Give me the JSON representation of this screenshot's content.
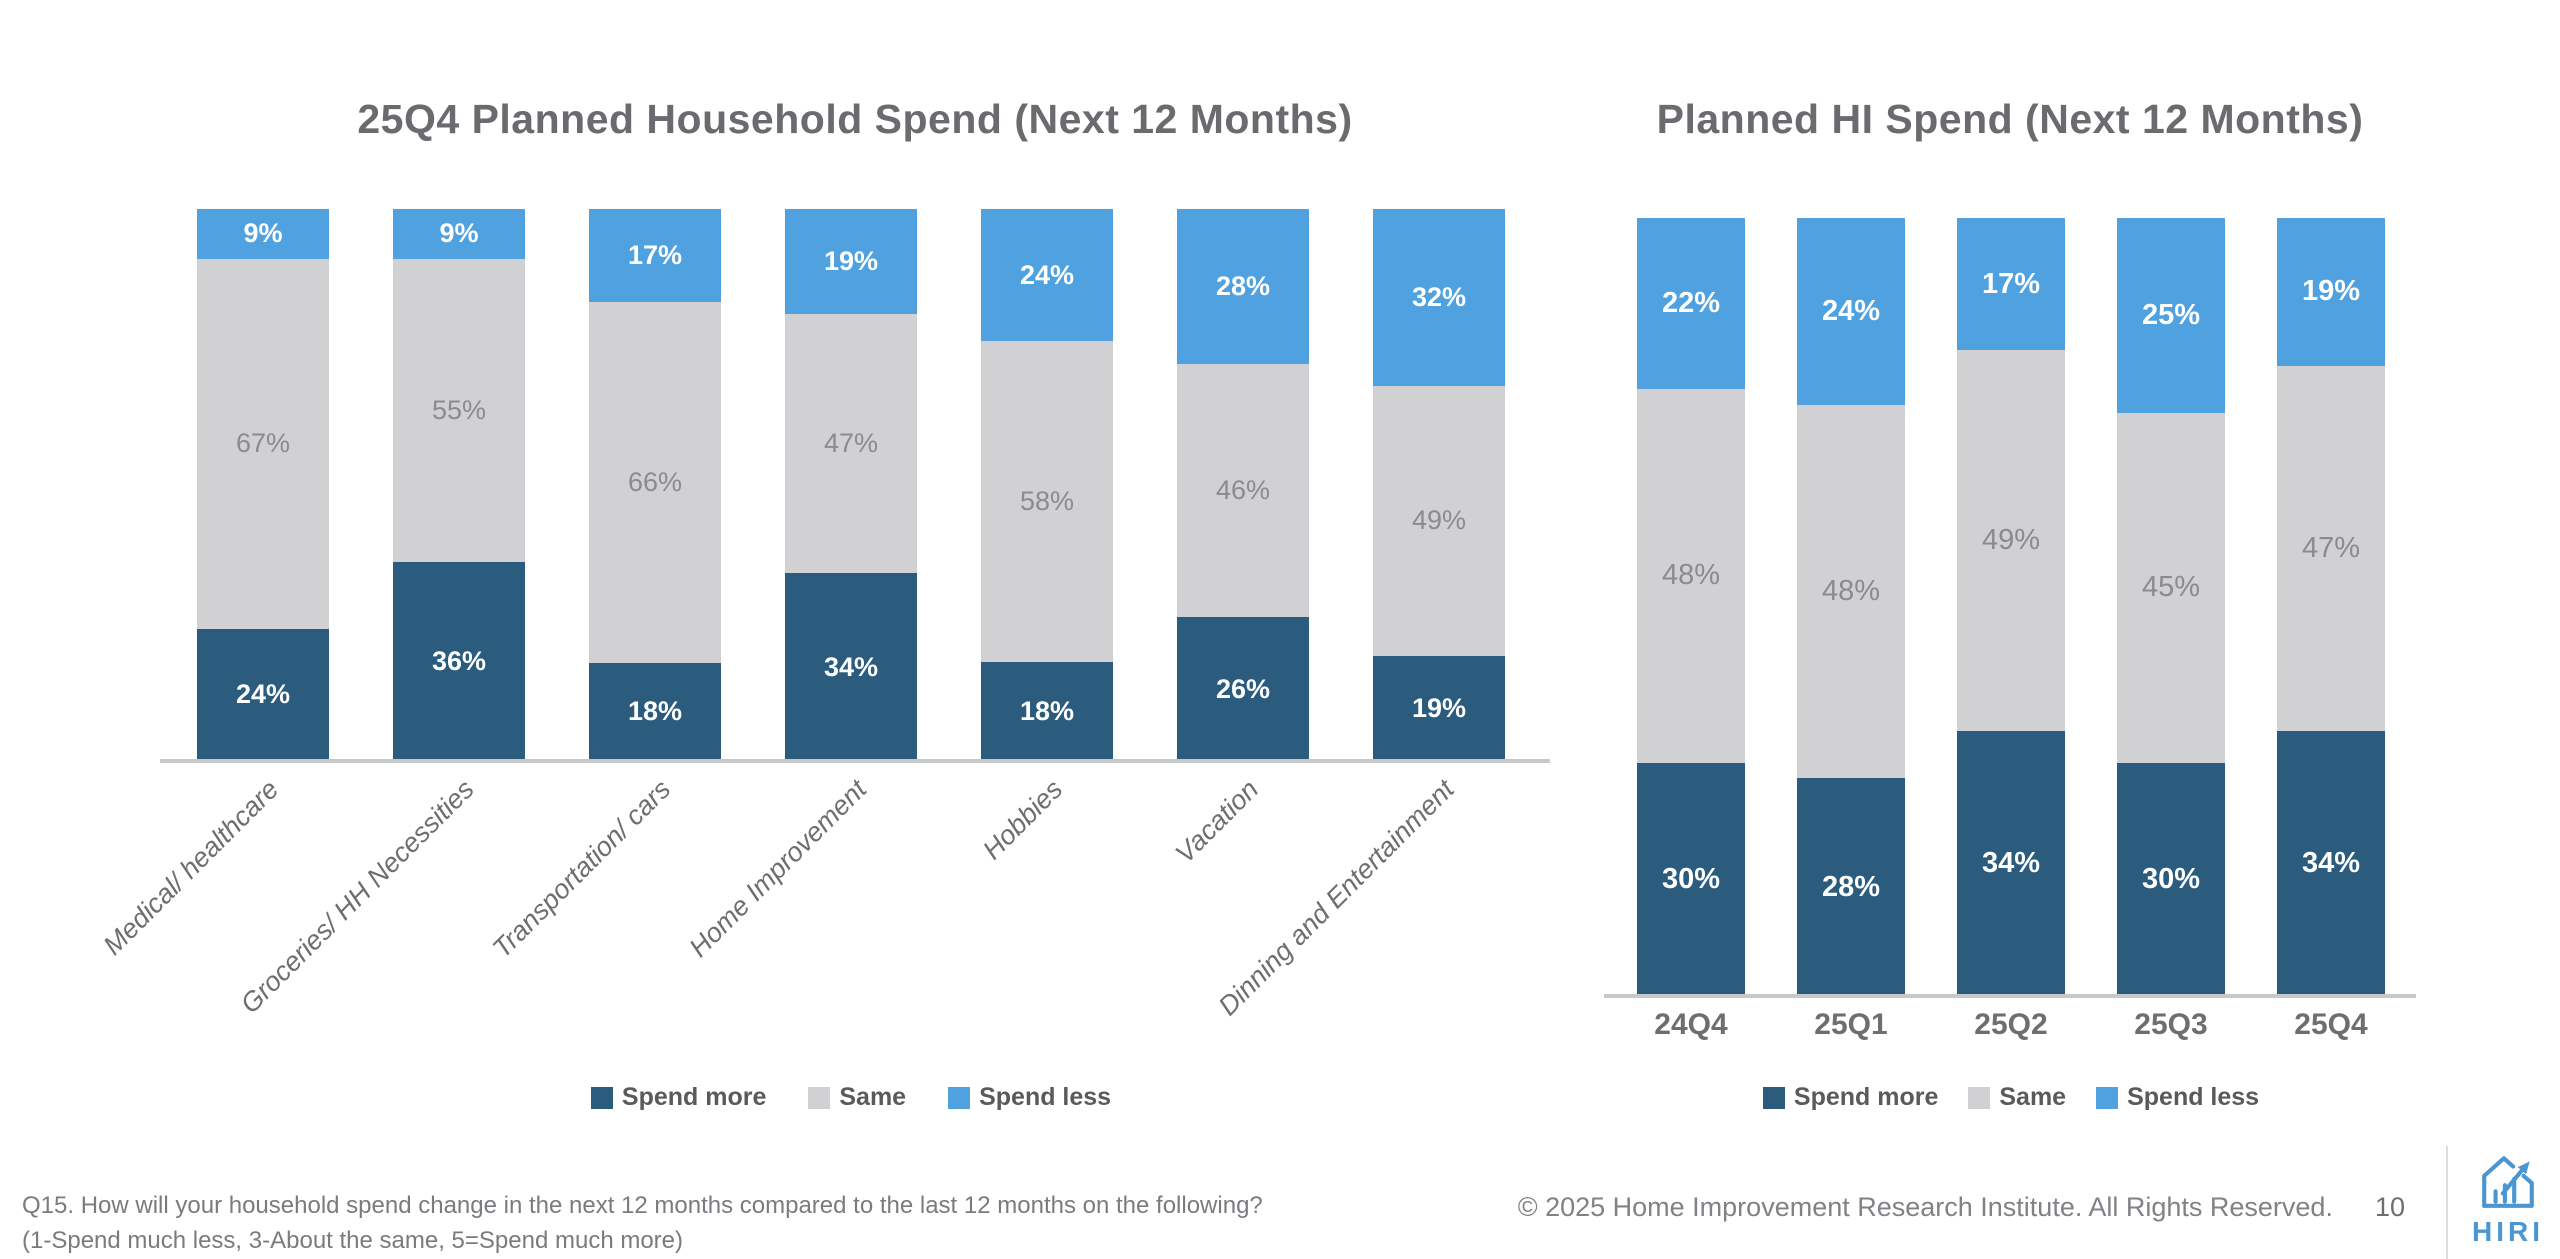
{
  "slide": {
    "footnote_line1": "Q15. How will your household spend change in the next 12 months compared to the last 12 months on the following?",
    "footnote_line2": "(1-Spend much less, 3-About the same, 5=Spend much more)",
    "copyright": "© 2025 Home Improvement Research Institute. All Rights Reserved.",
    "page_number": "10",
    "logo_text": "HIRI"
  },
  "colors": {
    "spend_more": "#2B5C7E",
    "same": "#D1D1D3",
    "spend_less": "#4FA2DF",
    "title_text": "#6A6B6E",
    "gray_segment_label": "#8A8B8E",
    "axis_line": "#C7C8CA",
    "logo_blue": "#4A96D2"
  },
  "series_styles": [
    {
      "name": "Spend more",
      "fill": "#2B5C7E",
      "label": "#FFFFFF"
    },
    {
      "name": "Same",
      "fill": "#D1D1D3",
      "label": "#8A8B8E"
    },
    {
      "name": "Spend less",
      "fill": "#4FA2DF",
      "label": "#FFFFFF"
    }
  ],
  "chart_data": [
    {
      "type": "bar",
      "stacked": true,
      "orientation": "vertical",
      "title": "25Q4 Planned Household Spend (Next 12 Months)",
      "categories": [
        "Medical/ healthcare",
        "Groceries/ HH Necessities",
        "Transportation/ cars",
        "Home Improvement",
        "Hobbies",
        "Vacation",
        "Dinning and Entertainment"
      ],
      "series": [
        {
          "name": "Spend more",
          "values": [
            24,
            36,
            18,
            34,
            18,
            26,
            19
          ]
        },
        {
          "name": "Same",
          "values": [
            67,
            55,
            66,
            47,
            58,
            46,
            49
          ]
        },
        {
          "name": "Spend less",
          "values": [
            9,
            9,
            17,
            19,
            24,
            28,
            32
          ]
        }
      ],
      "unit": "%",
      "ylim": [
        0,
        100
      ],
      "grid": false,
      "legend_position": "bottom",
      "legend": [
        "Spend more",
        "Same",
        "Spend less"
      ]
    },
    {
      "type": "bar",
      "stacked": true,
      "orientation": "vertical",
      "title": "Planned HI Spend (Next 12 Months)",
      "categories": [
        "24Q4",
        "25Q1",
        "25Q2",
        "25Q3",
        "25Q4"
      ],
      "series": [
        {
          "name": "Spend more",
          "values": [
            30,
            28,
            34,
            30,
            34
          ]
        },
        {
          "name": "Same",
          "values": [
            48,
            48,
            49,
            45,
            47
          ]
        },
        {
          "name": "Spend less",
          "values": [
            22,
            24,
            17,
            25,
            19
          ]
        }
      ],
      "unit": "%",
      "ylim": [
        0,
        100
      ],
      "grid": false,
      "legend_position": "bottom",
      "legend": [
        "Spend more",
        "Same",
        "Spend less"
      ]
    }
  ]
}
